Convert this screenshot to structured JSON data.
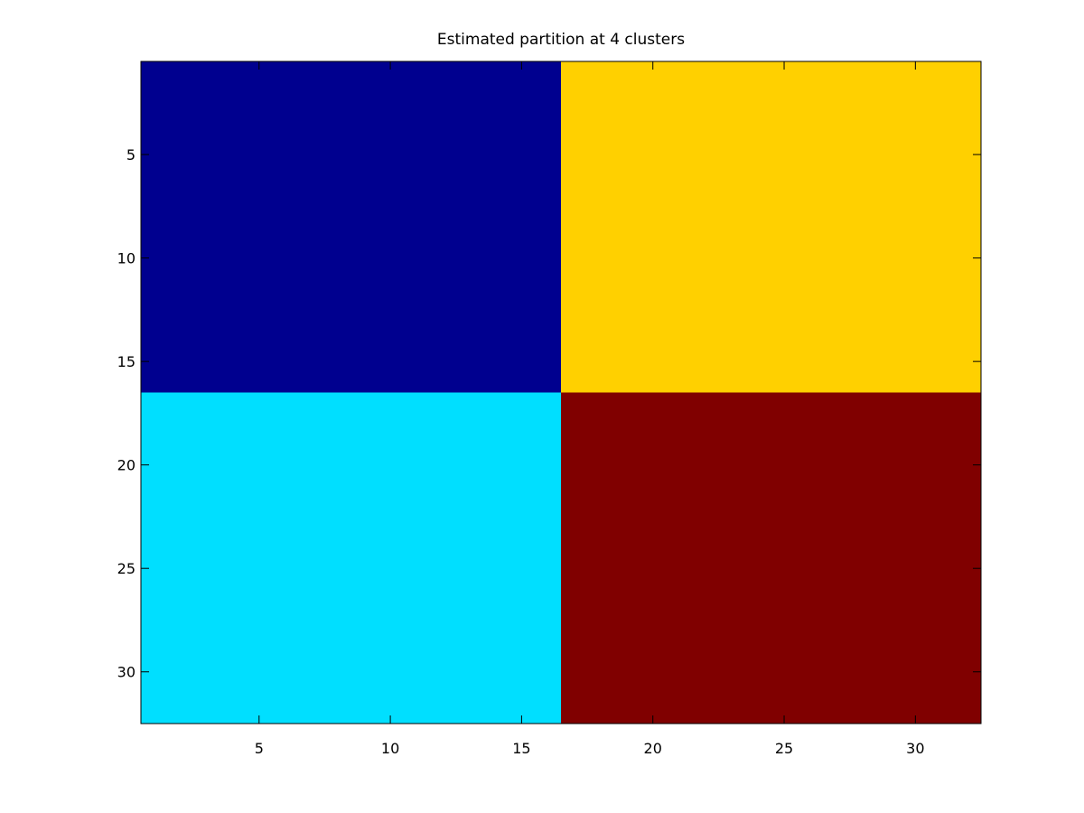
{
  "chart_data": {
    "type": "heatmap",
    "title": "Estimated partition at 4 clusters",
    "xlabel": "",
    "ylabel": "",
    "xlim": [
      0.5,
      32.5
    ],
    "ylim": [
      0.5,
      32.5
    ],
    "y_reversed": true,
    "grid": false,
    "xticks": [
      5,
      10,
      15,
      20,
      25,
      30
    ],
    "yticks": [
      5,
      10,
      15,
      20,
      25,
      30
    ],
    "xtick_labels": [
      "5",
      "10",
      "15",
      "20",
      "25",
      "30"
    ],
    "ytick_labels": [
      "5",
      "10",
      "15",
      "20",
      "25",
      "30"
    ],
    "blocks": [
      {
        "rows": [
          1,
          16
        ],
        "cols": [
          1,
          16
        ],
        "cluster": 1,
        "color": "#00008F"
      },
      {
        "rows": [
          1,
          16
        ],
        "cols": [
          17,
          32
        ],
        "cluster": 3,
        "color": "#FFD000"
      },
      {
        "rows": [
          17,
          32
        ],
        "cols": [
          1,
          16
        ],
        "cluster": 2,
        "color": "#00DFFF"
      },
      {
        "rows": [
          17,
          32
        ],
        "cols": [
          17,
          32
        ],
        "cluster": 4,
        "color": "#800000"
      }
    ]
  }
}
